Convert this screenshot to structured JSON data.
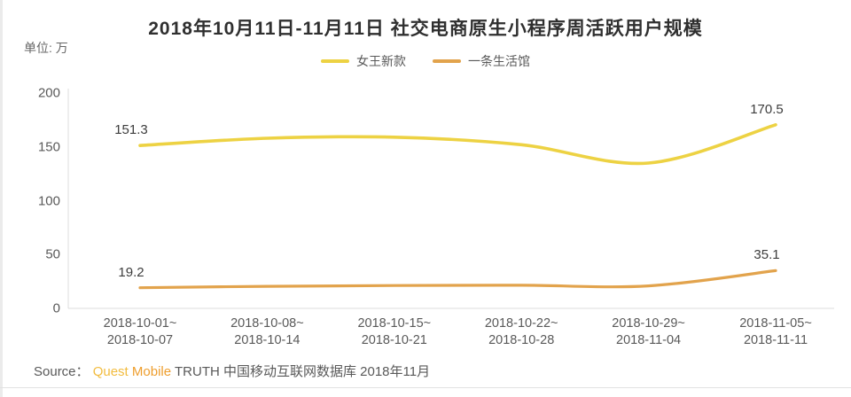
{
  "page": {
    "title": "2018年10月11日-11月11日 社交电商原生小程序周活跃用户规模",
    "unit_label": "单位: 万",
    "source": {
      "prefix": "Source：",
      "brand_quest": "Quest",
      "brand_mobile": "Mobile",
      "suffix": " TRUTH 中国移动互联网数据库 2018年11月"
    }
  },
  "colors": {
    "series_queen_yellow": "#edd243",
    "series_yitiao_orange": "#e2a34c",
    "axis_line": "#dcdcdc",
    "text_gray": "#595959",
    "brand_orange": "#ee9e2e"
  },
  "chart_data": {
    "type": "line",
    "title": "2018年10月11日-11月11日 社交电商原生小程序周活跃用户规模",
    "unit": "万",
    "categories": [
      "2018-10-01~2018-10-07",
      "2018-10-08~2018-10-14",
      "2018-10-15~2018-10-21",
      "2018-10-22~2018-10-28",
      "2018-10-29~2018-11-04",
      "2018-11-05~2018-11-11"
    ],
    "yticks": [
      0,
      50,
      100,
      150,
      200
    ],
    "ylim": [
      0,
      200
    ],
    "grid": false,
    "legend_position": "top",
    "series": [
      {
        "name": "女王新款",
        "color": "#edd243",
        "values": [
          151.3,
          158,
          159,
          152,
          135,
          170.5
        ],
        "labeled_points": [
          {
            "index": 0,
            "text": "151.3"
          },
          {
            "index": 5,
            "text": "170.5"
          }
        ]
      },
      {
        "name": "一条生活馆",
        "color": "#e2a34c",
        "values": [
          19.2,
          20.5,
          21.2,
          21.5,
          20.9,
          35.1
        ],
        "labeled_points": [
          {
            "index": 0,
            "text": "19.2"
          },
          {
            "index": 5,
            "text": "35.1"
          }
        ]
      }
    ]
  }
}
